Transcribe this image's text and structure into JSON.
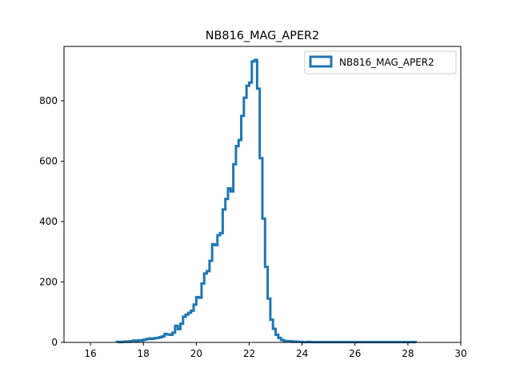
{
  "chart_data": {
    "type": "histogram",
    "title": "NB816_MAG_APER2",
    "xlabel": "",
    "ylabel": "",
    "xlim": [
      15,
      30
    ],
    "ylim": [
      0,
      980
    ],
    "xticks": [
      16,
      18,
      20,
      22,
      24,
      26,
      28,
      30
    ],
    "yticks": [
      0,
      200,
      400,
      600,
      800
    ],
    "grid": false,
    "legend_position": "top-right",
    "series": [
      {
        "name": "NB816_MAG_APER2",
        "color": "#1f77b4",
        "style": "step",
        "bin_edges": [
          17.0,
          17.1,
          17.2,
          17.3,
          17.4,
          17.5,
          17.6,
          17.7,
          17.8,
          17.9,
          18.0,
          18.1,
          18.2,
          18.3,
          18.4,
          18.5,
          18.6,
          18.7,
          18.8,
          18.9,
          19.0,
          19.1,
          19.2,
          19.3,
          19.4,
          19.5,
          19.6,
          19.7,
          19.8,
          19.9,
          20.0,
          20.1,
          20.2,
          20.3,
          20.4,
          20.5,
          20.6,
          20.7,
          20.8,
          20.9,
          21.0,
          21.1,
          21.2,
          21.3,
          21.4,
          21.5,
          21.6,
          21.7,
          21.8,
          21.9,
          22.0,
          22.1,
          22.2,
          22.3,
          22.4,
          22.5,
          22.6,
          22.7,
          22.8,
          22.9,
          23.0,
          23.1,
          23.2,
          23.3,
          23.4,
          23.5,
          23.6,
          23.7,
          23.8,
          23.9,
          24.0,
          24.1,
          24.2,
          24.3,
          24.4,
          24.5,
          24.6,
          24.7,
          24.8,
          24.9,
          25.0,
          25.1,
          25.2,
          25.3,
          25.4,
          25.5,
          25.6,
          25.7,
          25.8,
          25.9,
          26.0,
          26.1,
          26.2,
          26.3,
          26.4,
          26.5,
          26.6,
          26.7,
          26.8,
          26.9,
          27.0,
          27.1,
          27.2,
          27.3,
          27.4,
          27.5,
          27.6,
          27.7,
          27.8,
          27.9,
          28.0,
          28.1,
          28.2,
          28.3
        ],
        "counts": [
          2,
          1,
          2,
          3,
          2,
          4,
          6,
          5,
          7,
          6,
          9,
          11,
          13,
          12,
          14,
          15,
          17,
          20,
          28,
          26,
          25,
          32,
          55,
          44,
          62,
          85,
          92,
          98,
          105,
          125,
          150,
          148,
          195,
          228,
          236,
          270,
          325,
          322,
          355,
          362,
          440,
          475,
          510,
          500,
          590,
          650,
          670,
          750,
          810,
          850,
          860,
          930,
          935,
          840,
          610,
          410,
          250,
          145,
          75,
          45,
          25,
          15,
          8,
          5,
          3,
          4,
          2,
          3,
          2,
          2,
          1,
          1,
          2,
          1,
          1,
          1,
          1,
          1,
          1,
          1,
          1,
          1,
          1,
          1,
          1,
          1,
          1,
          1,
          1,
          1,
          1,
          1,
          1,
          1,
          1,
          1,
          1,
          1,
          1,
          1,
          1,
          1,
          1,
          1,
          1,
          1,
          1,
          1,
          1,
          1,
          1,
          1,
          1
        ]
      }
    ]
  }
}
